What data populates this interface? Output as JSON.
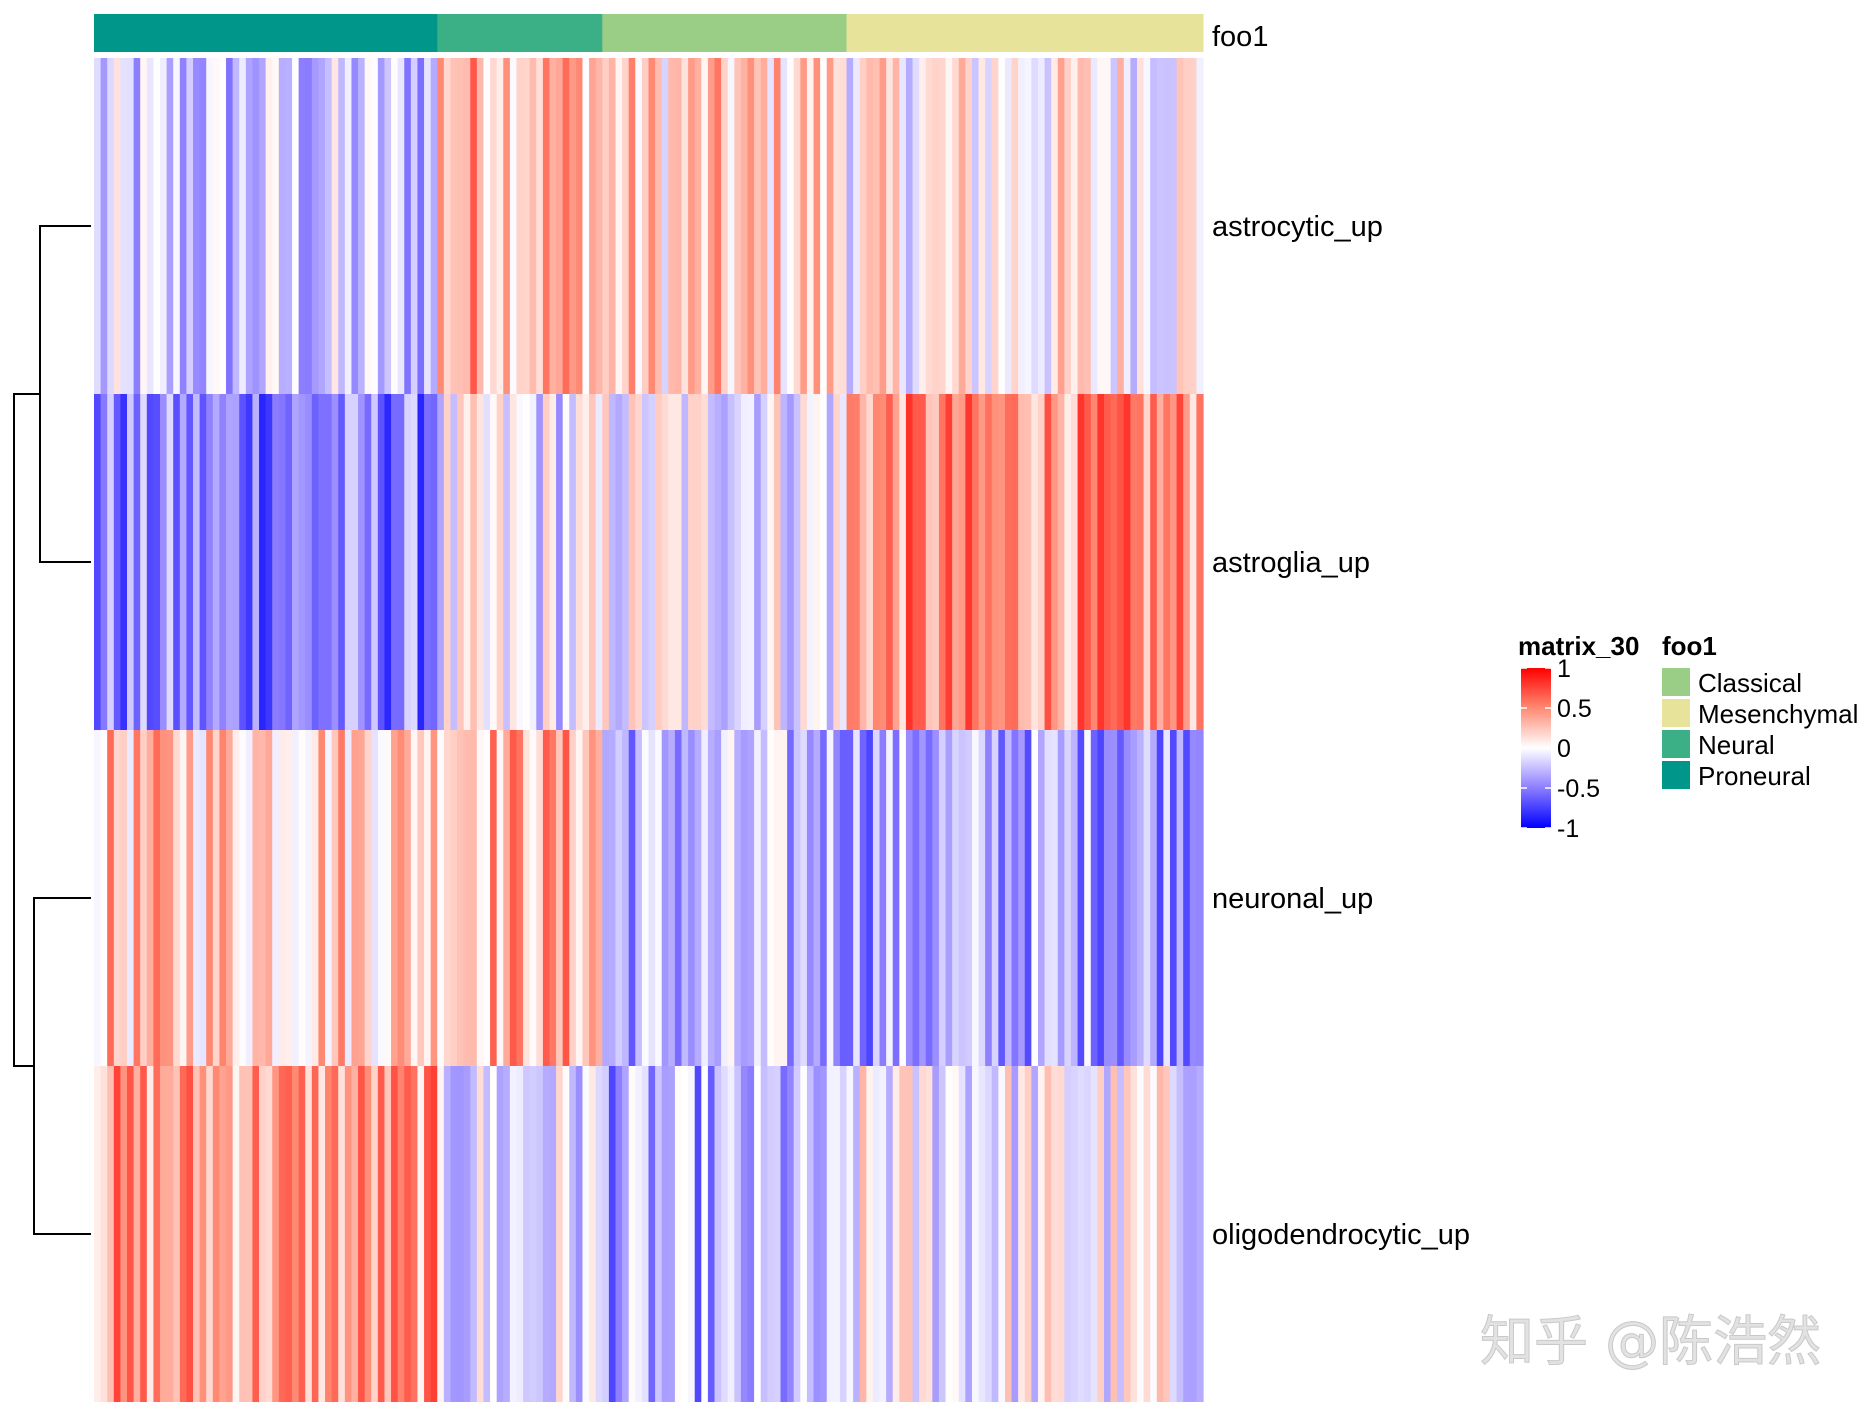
{
  "chart_data": {
    "type": "heatmap",
    "annotation": {
      "name": "foo1",
      "groups": [
        {
          "name": "Proneural",
          "count": 52,
          "color": "#00968A"
        },
        {
          "name": "Neural",
          "count": 25,
          "color": "#3BAF85"
        },
        {
          "name": "Classical",
          "count": 37,
          "color": "#9ACD85"
        },
        {
          "name": "Mesenchymal",
          "count": 54,
          "color": "#E8E39B"
        }
      ]
    },
    "rows": [
      "astrocytic_up",
      "astroglia_up",
      "neuronal_up",
      "oligodendrocytic_up"
    ],
    "row_group_means": [
      [
        -0.25,
        0.35,
        0.2,
        0.05
      ],
      [
        -0.5,
        -0.1,
        -0.05,
        0.45
      ],
      [
        0.25,
        0.35,
        -0.3,
        -0.35
      ],
      [
        0.4,
        -0.15,
        -0.35,
        -0.05
      ]
    ],
    "dendrogram": {
      "merges": [
        [
          "astrocytic_up",
          "astroglia_up"
        ],
        [
          "neuronal_up",
          "oligodendrocytic_up"
        ],
        [
          "cluster-1",
          "cluster-2"
        ]
      ]
    },
    "color_scale": {
      "title": "matrix_30",
      "breaks": [
        1,
        0.5,
        0,
        -0.5,
        -1
      ],
      "colors": {
        "high": "#FF0000",
        "mid": "#FFFFFF",
        "low": "#0000FF"
      },
      "domain": [
        -1,
        1
      ]
    },
    "legend": {
      "title": "foo1",
      "items": [
        "Classical",
        "Mesenchymal",
        "Neural",
        "Proneural"
      ]
    }
  },
  "watermark": "知乎 @陈浩然"
}
